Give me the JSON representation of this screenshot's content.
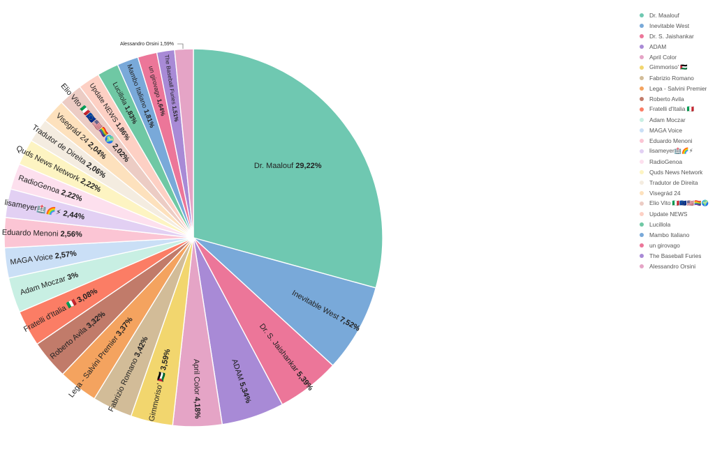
{
  "chart_data": {
    "type": "pie",
    "title": "",
    "legend_position": "right",
    "slices": [
      {
        "label": "Dr. Maalouf",
        "value": 29.22,
        "value_label": "29,22%",
        "color": "#6fc8b1"
      },
      {
        "label": "Inevitable West",
        "value": 7.52,
        "value_label": "7,52%",
        "color": "#79a9d9"
      },
      {
        "label": "Dr. S. Jaishankar",
        "value": 5.39,
        "value_label": "5,39%",
        "color": "#ec7699"
      },
      {
        "label": "ADAM",
        "value": 5.34,
        "value_label": "5,34%",
        "color": "#a88ad6"
      },
      {
        "label": "April Color",
        "value": 4.18,
        "value_label": "4,18%",
        "color": "#e5a4c6"
      },
      {
        "label": "Gimmoriso' 🇵🇸",
        "value": 3.59,
        "value_label": "3,59%",
        "color": "#f2d66e"
      },
      {
        "label": "Fabrizio Romano",
        "value": 3.42,
        "value_label": "3,42%",
        "color": "#d2bc98"
      },
      {
        "label": "Lega - Salvini Premier",
        "value": 3.37,
        "value_label": "3,37%",
        "color": "#f4a35f"
      },
      {
        "label": "Roberto Avila",
        "value": 3.32,
        "value_label": "3,32%",
        "color": "#c17b6a"
      },
      {
        "label": "Fratelli d'Italia 🇮🇹",
        "value": 3.08,
        "value_label": "3,08%",
        "color": "#fb7d65"
      },
      {
        "label": "Adam Moczar",
        "value": 3,
        "value_label": "3%",
        "color": "#c8efe3"
      },
      {
        "label": "MAGA Voice",
        "value": 2.57,
        "value_label": "2,57%",
        "color": "#cadff6"
      },
      {
        "label": "Eduardo Menoni",
        "value": 2.56,
        "value_label": "2,56%",
        "color": "#fbc5d4"
      },
      {
        "label": "lisameyer🏥🌈⚡",
        "value": 2.44,
        "value_label": "2,44%",
        "color": "#e2d0f3"
      },
      {
        "label": "RadioGenoa",
        "value": 2.22,
        "value_label": "2,22%",
        "color": "#fde0ee"
      },
      {
        "label": "Quds News Network",
        "value": 2.22,
        "value_label": "2,22%",
        "color": "#fdf4c2"
      },
      {
        "label": "Tradutor de Direita",
        "value": 2.06,
        "value_label": "2,06%",
        "color": "#f4ece0"
      },
      {
        "label": "Visegrád 24",
        "value": 2.04,
        "value_label": "2,04%",
        "color": "#fde1bd"
      },
      {
        "label": "Elio Vito 🇮🇹🇪🇺🇺🇸🏳️‍🌈🌍",
        "value": 2.02,
        "value_label": "2,02%",
        "color": "#ecccc4"
      },
      {
        "label": "Update NEWS",
        "value": 1.86,
        "value_label": "1,86%",
        "color": "#fdd0c4"
      },
      {
        "label": "Lucillola",
        "value": 1.83,
        "value_label": "1,83%",
        "color": "#6fc8a4"
      },
      {
        "label": "Mambo Italiano",
        "value": 1.81,
        "value_label": "1,81%",
        "color": "#79a9d9"
      },
      {
        "label": "un girovago",
        "value": 1.64,
        "value_label": "1,64%",
        "color": "#ec7699"
      },
      {
        "label": "The Baseball Furies",
        "value": 1.51,
        "value_label": "1,51%",
        "color": "#a88ad6"
      },
      {
        "label": "Alessandro Orsini",
        "value": 1.59,
        "value_label": "1,59%",
        "color": "#e5a4c6"
      }
    ]
  }
}
